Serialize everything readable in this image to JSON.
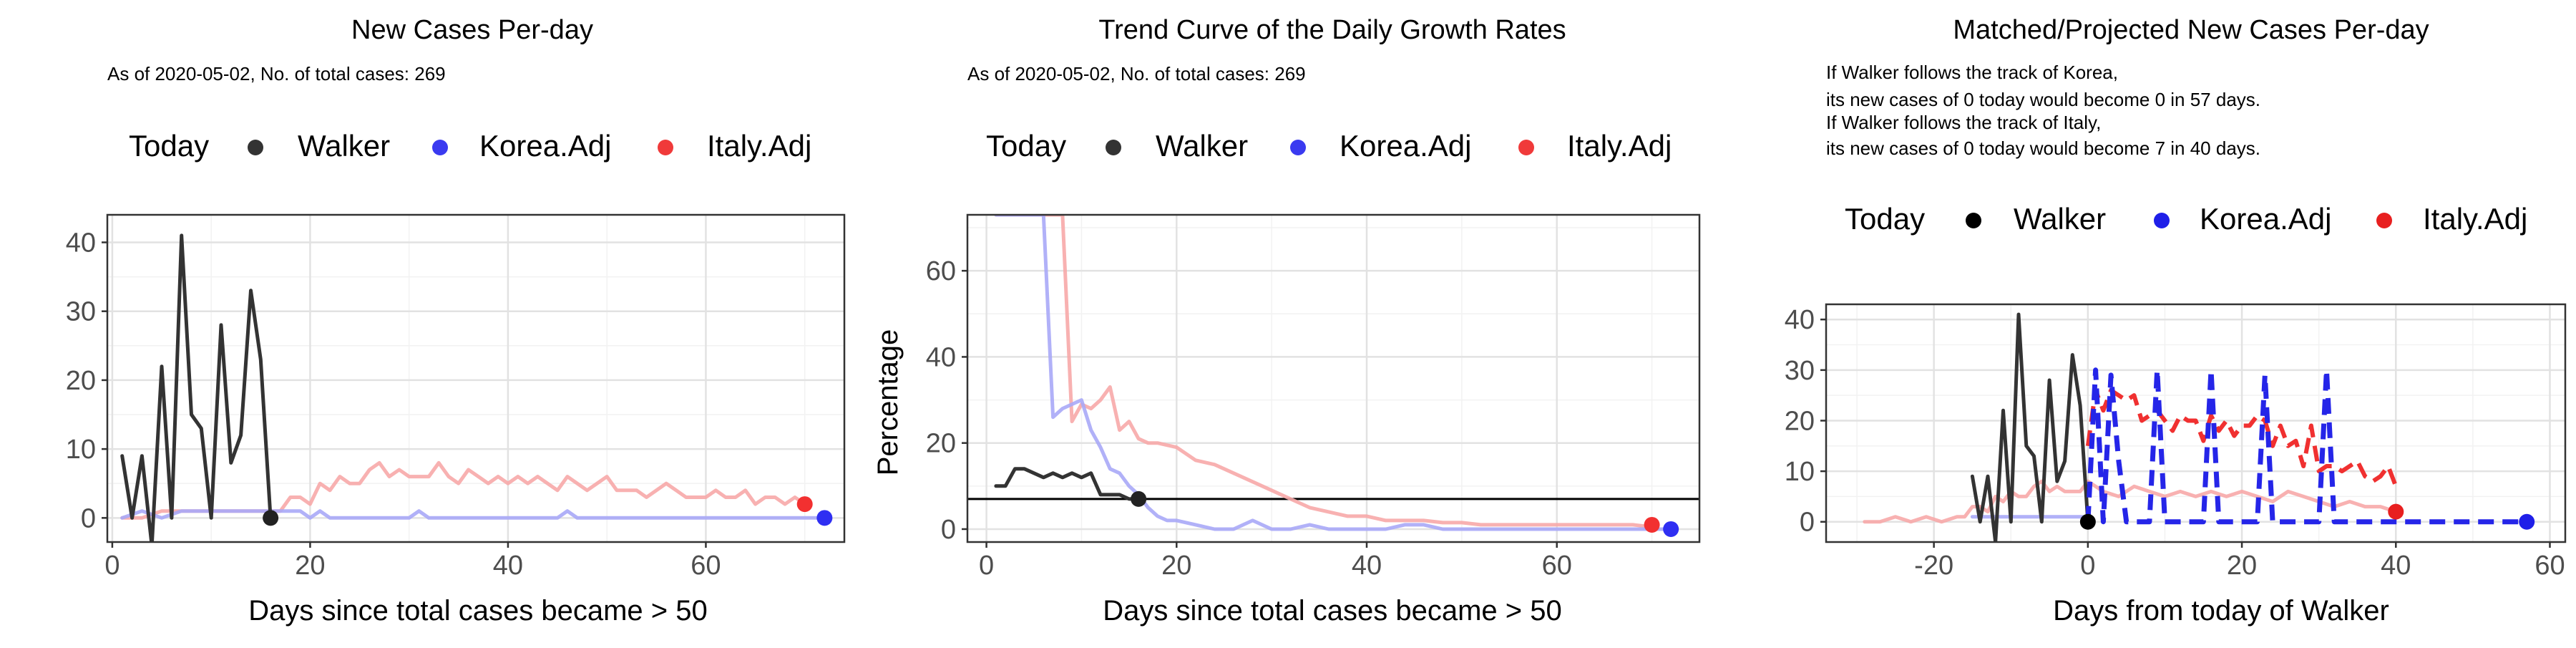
{
  "chart_data": [
    {
      "type": "line",
      "title": "New Cases Per-day",
      "subtitle": "As of 2020-05-02, No. of total cases: 269",
      "xlabel": "Days since total cases became > 50",
      "ylabel": "",
      "xlim": [
        -0.5,
        74
      ],
      "ylim": [
        -3.5,
        44
      ],
      "xticks": [
        0,
        20,
        40,
        60
      ],
      "yticks": [
        0,
        10,
        20,
        30,
        40
      ],
      "grid": true,
      "legend": {
        "position": "top",
        "title": "Today",
        "entries": [
          {
            "name": "Walker",
            "color": "#333333"
          },
          {
            "name": "Korea.Adj",
            "color": "#3a3af0"
          },
          {
            "name": "Italy.Adj",
            "color": "#f03a3a"
          }
        ]
      },
      "series": [
        {
          "name": "Italy.Adj",
          "color": "#f7a8a8",
          "opacity": 0.9,
          "width": 5,
          "x": [
            1,
            3,
            5,
            7,
            9,
            11,
            13,
            15,
            17,
            18,
            19,
            20,
            21,
            22,
            23,
            24,
            25,
            26,
            27,
            28,
            29,
            30,
            31,
            32,
            33,
            34,
            35,
            36,
            37,
            38,
            39,
            40,
            41,
            42,
            43,
            44,
            45,
            46,
            47,
            48,
            49,
            50,
            51,
            52,
            53,
            54,
            55,
            56,
            57,
            58,
            59,
            60,
            61,
            62,
            63,
            64,
            65,
            66,
            67,
            68,
            69,
            70
          ],
          "y": [
            0,
            0,
            1,
            1,
            1,
            1,
            1,
            1,
            1,
            3,
            3,
            2,
            5,
            4,
            6,
            5,
            5,
            7,
            8,
            6,
            7,
            6,
            6,
            6,
            8,
            6,
            5,
            7,
            6,
            5,
            6,
            5,
            6,
            5,
            6,
            5,
            4,
            6,
            5,
            4,
            5,
            6,
            4,
            4,
            4,
            3,
            4,
            5,
            4,
            3,
            3,
            3,
            4,
            3,
            3,
            4,
            2,
            3,
            3,
            2,
            3,
            2
          ]
        },
        {
          "name": "Korea.Adj",
          "color": "#a8a8f7",
          "opacity": 0.9,
          "width": 5,
          "x": [
            1,
            3,
            5,
            7,
            9,
            11,
            13,
            15,
            17,
            19,
            20,
            21,
            22,
            30,
            31,
            32,
            45,
            46,
            47,
            72
          ],
          "y": [
            0,
            1,
            0,
            1,
            1,
            1,
            1,
            1,
            1,
            1,
            0,
            1,
            0,
            0,
            1,
            0,
            0,
            1,
            0,
            0
          ]
        },
        {
          "name": "Walker",
          "color": "#333333",
          "opacity": 1,
          "width": 5,
          "x": [
            1,
            2,
            3,
            4,
            5,
            6,
            7,
            8,
            9,
            10,
            11,
            12,
            13,
            14,
            15,
            16
          ],
          "y": [
            9,
            0,
            9,
            -4,
            22,
            0,
            41,
            15,
            13,
            0,
            28,
            8,
            12,
            33,
            23,
            0
          ]
        }
      ],
      "today_points": [
        {
          "name": "Walker",
          "x": 16,
          "y": 0,
          "color": "#222222"
        },
        {
          "name": "Korea.Adj",
          "x": 72,
          "y": 0,
          "color": "#2f2ff2"
        },
        {
          "name": "Italy.Adj",
          "x": 70,
          "y": 2,
          "color": "#f23030"
        }
      ]
    },
    {
      "type": "line",
      "title": "Trend Curve of the Daily Growth Rates",
      "subtitle": "As of 2020-05-02, No. of total cases: 269",
      "xlabel": "Days since total cases became > 50",
      "ylabel": "Percentage",
      "xlim": [
        -2,
        75
      ],
      "ylim": [
        -3,
        73
      ],
      "xticks": [
        0,
        20,
        40,
        60
      ],
      "yticks": [
        0,
        20,
        40,
        60
      ],
      "grid": true,
      "hline": 7,
      "legend": {
        "position": "top",
        "title": "Today",
        "entries": [
          {
            "name": "Walker",
            "color": "#333333"
          },
          {
            "name": "Korea.Adj",
            "color": "#3a3af0"
          },
          {
            "name": "Italy.Adj",
            "color": "#f03a3a"
          }
        ]
      },
      "series": [
        {
          "name": "Italy.Adj",
          "color": "#f7a8a8",
          "opacity": 0.9,
          "width": 5,
          "x": [
            1,
            8,
            9,
            10,
            11,
            12,
            13,
            14,
            15,
            16,
            17,
            18,
            20,
            22,
            24,
            26,
            28,
            30,
            32,
            34,
            36,
            38,
            40,
            42,
            44,
            46,
            48,
            50,
            52,
            54,
            56,
            58,
            60,
            62,
            64,
            66,
            68,
            70
          ],
          "y": [
            73,
            73,
            25,
            29,
            28,
            30,
            33,
            23,
            25,
            21,
            20,
            20,
            19,
            16,
            15,
            13,
            11,
            9,
            7,
            5,
            4,
            3,
            3,
            2,
            2,
            2,
            1.5,
            1.5,
            1,
            1,
            1,
            1,
            1,
            1,
            1,
            1,
            1,
            0.5
          ]
        },
        {
          "name": "Korea.Adj",
          "color": "#a8a8f7",
          "opacity": 0.9,
          "width": 5,
          "x": [
            1,
            6,
            7,
            8,
            9,
            10,
            11,
            12,
            13,
            14,
            15,
            16,
            17,
            18,
            19,
            20,
            22,
            24,
            26,
            28,
            30,
            32,
            34,
            36,
            38,
            40,
            42,
            44,
            46,
            48,
            50,
            52,
            54,
            56,
            58,
            60,
            62,
            64,
            66,
            68,
            70,
            72
          ],
          "y": [
            73,
            73,
            26,
            28,
            29,
            30,
            23,
            19,
            14,
            13,
            10,
            8,
            5,
            3,
            2,
            2,
            1,
            0,
            0,
            2,
            0,
            0,
            1,
            0,
            0,
            0,
            0,
            1,
            1,
            0,
            0,
            0,
            0,
            0,
            0,
            0,
            0,
            0,
            0,
            0,
            0,
            0
          ]
        },
        {
          "name": "Walker",
          "color": "#333333",
          "opacity": 1,
          "width": 5,
          "x": [
            1,
            2,
            3,
            4,
            5,
            6,
            7,
            8,
            9,
            10,
            11,
            12,
            13,
            14,
            15,
            16
          ],
          "y": [
            10,
            10,
            14,
            14,
            13,
            12,
            13,
            12,
            13,
            12,
            13,
            8,
            8,
            8,
            7,
            7
          ]
        }
      ],
      "today_points": [
        {
          "name": "Walker",
          "x": 16,
          "y": 7,
          "color": "#222222"
        },
        {
          "name": "Korea.Adj",
          "x": 72,
          "y": 0,
          "color": "#2f2ff2"
        },
        {
          "name": "Italy.Adj",
          "x": 70,
          "y": 1,
          "color": "#f23030"
        }
      ]
    },
    {
      "type": "line",
      "title": "Matched/Projected New Cases Per-day",
      "subtitle_lines": [
        "If Walker follows the track of Korea,",
        "its new cases of 0 today would become 0 in 57 days.",
        "If Walker follows the track of Italy,",
        "its new cases of 0 today would become 7 in 40 days."
      ],
      "xlabel": "Days from today of Walker",
      "ylabel": "",
      "xlim": [
        -34,
        62
      ],
      "ylim": [
        -4,
        43
      ],
      "xticks": [
        -20,
        0,
        20,
        40,
        60
      ],
      "yticks": [
        0,
        10,
        20,
        30,
        40
      ],
      "grid": true,
      "legend": {
        "position": "top",
        "title": "Today",
        "entries": [
          {
            "name": "Walker",
            "color": "#000000"
          },
          {
            "name": "Korea.Adj",
            "color": "#1f1fe8"
          },
          {
            "name": "Italy.Adj",
            "color": "#e81f1f"
          }
        ]
      },
      "series": [
        {
          "name": "Italy.Adj (past)",
          "color": "#f7a8a8",
          "opacity": 0.9,
          "width": 5,
          "dash": "",
          "x": [
            -29,
            -27,
            -25,
            -23,
            -21,
            -19,
            -17,
            -16,
            -15,
            -14,
            -13,
            -12,
            -11,
            -10,
            -9,
            -8,
            -7,
            -6,
            -5,
            -4,
            -3,
            -2,
            -1,
            0,
            2,
            4,
            6,
            8,
            10,
            12,
            14,
            16,
            18,
            20,
            22,
            24,
            26,
            28,
            30,
            32,
            34,
            36,
            38,
            40
          ],
          "y": [
            0,
            0,
            1,
            0,
            1,
            0,
            1,
            1,
            3,
            3,
            2,
            5,
            4,
            6,
            5,
            5,
            7,
            8,
            6,
            7,
            6,
            6,
            6,
            8,
            6,
            5,
            7,
            6,
            5,
            6,
            5,
            6,
            5,
            6,
            5,
            4,
            6,
            5,
            4,
            3,
            4,
            3,
            3,
            2
          ]
        },
        {
          "name": "Korea.Adj (past)",
          "color": "#a8a8f7",
          "opacity": 0.9,
          "width": 5,
          "dash": "",
          "x": [
            -15,
            -12,
            -10,
            -8,
            -6,
            -4,
            -2,
            0
          ],
          "y": [
            1,
            1,
            1,
            1,
            1,
            1,
            1,
            1
          ]
        },
        {
          "name": "Walker",
          "color": "#333333",
          "opacity": 1,
          "width": 5,
          "dash": "",
          "x": [
            -15,
            -14,
            -13,
            -12,
            -11,
            -10,
            -9,
            -8,
            -7,
            -6,
            -5,
            -4,
            -3,
            -2,
            -1,
            0
          ],
          "y": [
            9,
            0,
            9,
            -4,
            22,
            0,
            41,
            15,
            13,
            0,
            28,
            8,
            12,
            33,
            23,
            0
          ]
        },
        {
          "name": "Italy.Adj (projected)",
          "color": "#f03030",
          "opacity": 1,
          "width": 6,
          "dash": "22,12",
          "x": [
            0,
            1,
            2,
            3,
            4,
            5,
            6,
            7,
            8,
            9,
            10,
            11,
            12,
            13,
            14,
            15,
            16,
            17,
            18,
            19,
            20,
            21,
            22,
            23,
            24,
            25,
            26,
            27,
            28,
            29,
            30,
            31,
            32,
            33,
            34,
            35,
            36,
            37,
            38,
            39,
            40
          ],
          "y": [
            15,
            26,
            22,
            26,
            25,
            24,
            25,
            20,
            21,
            22,
            20,
            18,
            21,
            20,
            20,
            16,
            21,
            18,
            20,
            17,
            19,
            19,
            21,
            20,
            15,
            19,
            15,
            16,
            11,
            19,
            10,
            11,
            11,
            10,
            11,
            12,
            9,
            8,
            9,
            11,
            7
          ]
        },
        {
          "name": "Korea.Adj (projected)",
          "color": "#2525e8",
          "opacity": 1,
          "width": 7,
          "dash": "22,12",
          "x": [
            0,
            1,
            2,
            3,
            4,
            5,
            6,
            7,
            8,
            9,
            10,
            11,
            12,
            13,
            14,
            15,
            16,
            17,
            18,
            19,
            20,
            21,
            22,
            23,
            24,
            25,
            26,
            27,
            28,
            29,
            30,
            31,
            32,
            33,
            34,
            35,
            36,
            37,
            38,
            39,
            40,
            57
          ],
          "y": [
            0,
            30,
            0,
            29,
            12,
            0,
            0,
            0,
            0,
            30,
            0,
            0,
            0,
            0,
            0,
            0,
            30,
            0,
            0,
            0,
            0,
            0,
            0,
            29,
            0,
            0,
            0,
            0,
            0,
            0,
            0,
            30,
            0,
            0,
            0,
            0,
            0,
            0,
            0,
            0,
            0,
            0
          ]
        }
      ],
      "today_points": [
        {
          "name": "Walker",
          "x": 0,
          "y": 0,
          "color": "#000000"
        },
        {
          "name": "Korea.Adj",
          "x": 57,
          "y": 0,
          "color": "#1f1fe8"
        },
        {
          "name": "Italy.Adj",
          "x": 40,
          "y": 2,
          "color": "#e81f1f"
        }
      ]
    }
  ]
}
